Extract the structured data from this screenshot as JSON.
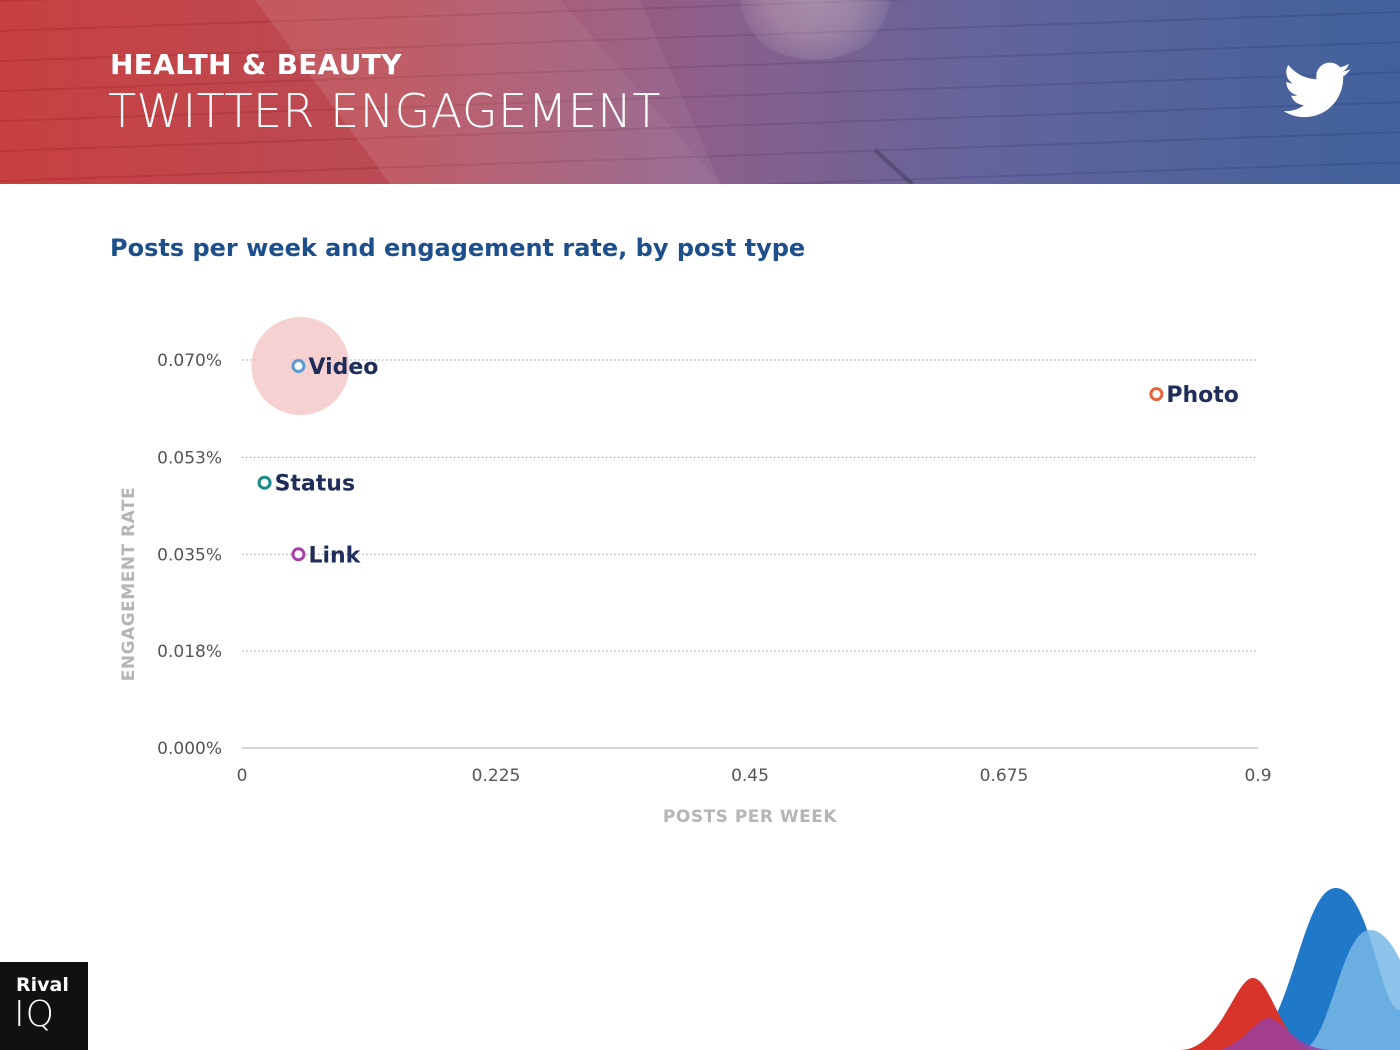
{
  "header": {
    "kicker": "HEALTH & BEAUTY",
    "title": "TWITTER ENGAGEMENT",
    "icon": "twitter-bird-icon"
  },
  "logo": {
    "line1": "Rival",
    "line2": "IQ"
  },
  "chart_data": {
    "type": "scatter",
    "title": "Posts per week and engagement rate, by post type",
    "xlabel": "POSTS PER WEEK",
    "ylabel": "ENGAGEMENT RATE",
    "xlim": [
      0,
      0.9
    ],
    "ylim": [
      0,
      0.0705
    ],
    "x_ticks": [
      "0",
      "0.225",
      "0.45",
      "0.675",
      "0.9"
    ],
    "y_ticks": [
      "0.000%",
      "0.018%",
      "0.035%",
      "0.053%",
      "0.070%"
    ],
    "y_tick_values": [
      0,
      0.0176,
      0.0352,
      0.0528,
      0.0705
    ],
    "grid": true,
    "points": [
      {
        "label": "Video",
        "x": 0.05,
        "y": 0.0694,
        "color": "#5b9bd5",
        "highlight": true,
        "highlight_color": "#f4c6c6"
      },
      {
        "label": "Photo",
        "x": 0.81,
        "y": 0.0643,
        "color": "#e8643c"
      },
      {
        "label": "Status",
        "x": 0.02,
        "y": 0.0482,
        "color": "#178a8a"
      },
      {
        "label": "Link",
        "x": 0.05,
        "y": 0.0352,
        "color": "#a540a8"
      }
    ]
  },
  "colors": {
    "title_blue": "#1d4f8c",
    "label_navy": "#1e2d5a",
    "axis_title_gray": "#b5b5b5"
  }
}
